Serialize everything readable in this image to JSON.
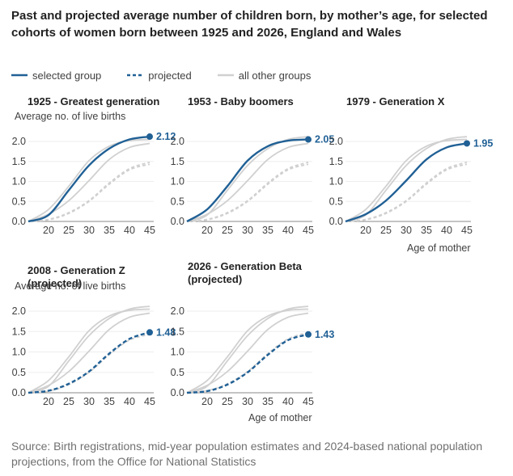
{
  "title": "Past and projected average number of children born, by mother’s age, for selected cohorts of women born between 1925 and 2026, England and Wales",
  "legend": [
    {
      "label": "selected group",
      "style": "solid",
      "color": "#206095"
    },
    {
      "label": "projected",
      "style": "dashed",
      "color": "#206095"
    },
    {
      "label": "all other groups",
      "style": "solid",
      "color": "#d0d0d0"
    }
  ],
  "ylabel": "Average no. of live births",
  "xlabel": "Age of mother",
  "source": "Source: Birth registrations, mid-year population estimates and 2024-based national population projections, from the Office for National Statistics",
  "chart_data": {
    "type": "line",
    "layout": "small-multiples",
    "x": [
      15,
      20,
      25,
      30,
      35,
      40,
      45
    ],
    "x_ticks": [
      20,
      25,
      30,
      35,
      40,
      45
    ],
    "y_ticks": [
      0.0,
      0.5,
      1.0,
      1.5,
      2.0
    ],
    "ylim": [
      0,
      2.2
    ],
    "xlim": [
      15,
      46
    ],
    "cohorts": [
      {
        "name": "1925",
        "values": [
          0,
          0.16,
          0.78,
          1.4,
          1.82,
          2.05,
          2.12
        ],
        "projected_from": null
      },
      {
        "name": "1953",
        "values": [
          0,
          0.3,
          0.88,
          1.52,
          1.88,
          2.02,
          2.05
        ],
        "projected_from": null
      },
      {
        "name": "1979",
        "values": [
          0,
          0.18,
          0.52,
          1.02,
          1.55,
          1.85,
          1.95
        ],
        "projected_from": null
      },
      {
        "name": "2008",
        "values": [
          0,
          0.05,
          0.22,
          0.52,
          0.96,
          1.32,
          1.48
        ],
        "projected_from": 17
      },
      {
        "name": "2026",
        "values": [
          0,
          0.04,
          0.2,
          0.5,
          0.93,
          1.29,
          1.43
        ],
        "projected_from": 15
      }
    ],
    "panels": [
      {
        "title": "1925 - Greatest generation",
        "selected": "1925",
        "end_label": "2.12",
        "show_ylabel": true,
        "show_xlabel": false
      },
      {
        "title": "1953 - Baby boomers",
        "selected": "1953",
        "end_label": "2.05",
        "show_ylabel": false,
        "show_xlabel": false
      },
      {
        "title": "1979 - Generation X",
        "selected": "1979",
        "end_label": "1.95",
        "show_ylabel": false,
        "show_xlabel": true
      },
      {
        "title": "2008 - Generation Z (projected)",
        "selected": "2008",
        "end_label": "1.48",
        "show_ylabel": true,
        "show_xlabel": false
      },
      {
        "title": "2026 - Generation Beta (projected)",
        "selected": "2026",
        "end_label": "1.43",
        "show_ylabel": false,
        "show_xlabel": true
      }
    ]
  }
}
